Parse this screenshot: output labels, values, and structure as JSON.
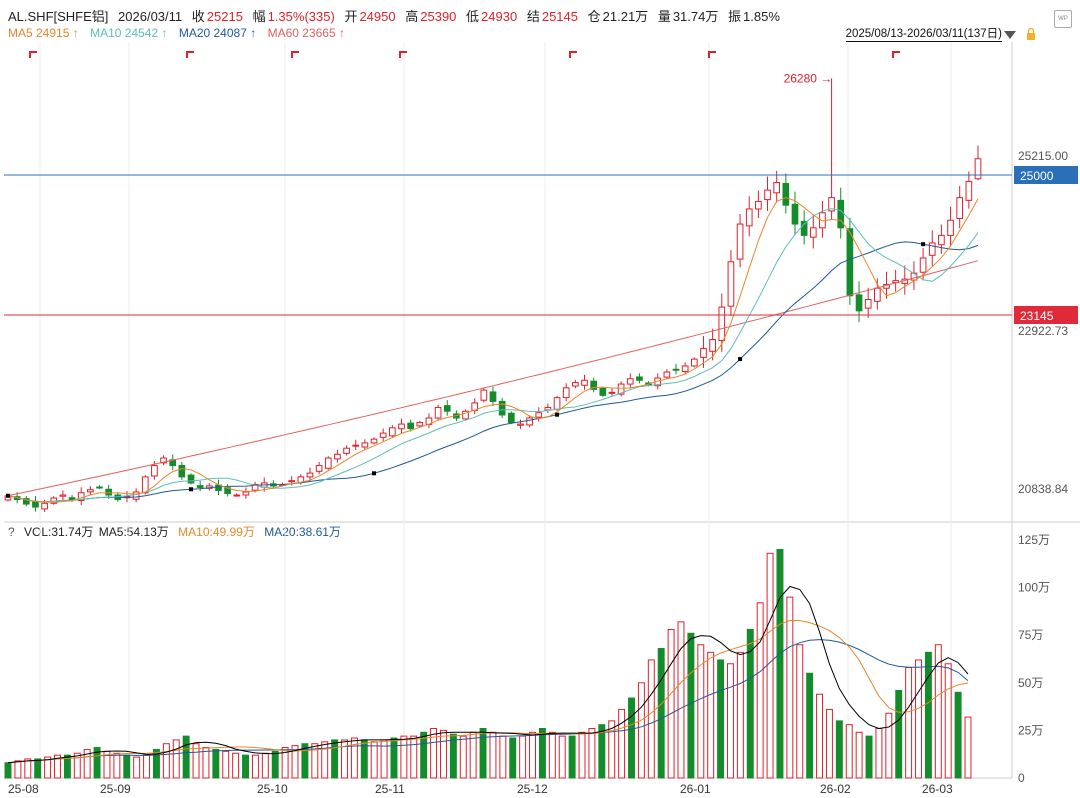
{
  "header": {
    "symbol": "AL.SHF[SHFE铝]",
    "date": "2026/03/11",
    "close_label": "收",
    "close": "25215",
    "change_label": "幅",
    "change": "1.35%(335)",
    "open_label": "开",
    "open": "24950",
    "high_label": "高",
    "high": "25390",
    "low_label": "低",
    "low": "24930",
    "settle_label": "结",
    "settle": "25145",
    "oi_label": "仓",
    "oi": "21.21万",
    "vol_label": "量",
    "vol": "31.74万",
    "amp_label": "振",
    "amp": "1.85%"
  },
  "ma_legend": {
    "ma5": "MA5 24915",
    "ma10": "MA10 24542",
    "ma20": "MA20 24087",
    "ma60": "MA60 23665",
    "arrow": "↑"
  },
  "range_text": "2025/08/13-2026/03/11(137日)",
  "watermark": "WP",
  "vol_legend": {
    "q": "?",
    "vol": "VOL:31.74万",
    "ma5": "MA5:54.13万",
    "ma10": "MA10:49.99万",
    "ma20": "MA20:38.61万"
  },
  "colors": {
    "up": "#e0202a",
    "down": "#148c2c",
    "ma5": "#000000",
    "ma10": "#e8862a",
    "ma20": "#5bbfb6",
    "ma60": "#1f5a96",
    "ma120": "#e06060",
    "hline_blue": "#2a6fb8",
    "hline_red": "#e02a3a"
  },
  "chart_data": [
    {
      "type": "candlestick",
      "title": "AL.SHF[SHFE铝]",
      "price_labels": [
        "25215.00",
        "22922.73",
        "20838.84"
      ],
      "hlines": [
        {
          "label": "25000",
          "value": 25000,
          "color": "blue"
        },
        {
          "label": "23145",
          "value": 23145,
          "color": "red"
        }
      ],
      "peak_annotation": {
        "label": "26280",
        "value": 26280
      },
      "x_ticks": [
        "25-08",
        "25-09",
        "25-10",
        "25-11",
        "25-12",
        "26-01",
        "26-02",
        "26-03"
      ],
      "ylim": [
        20700,
        26500
      ],
      "anchors_close": [
        20750,
        20700,
        20640,
        20600,
        20650,
        20720,
        20760,
        20700,
        20790,
        20830,
        20860,
        20760,
        20700,
        20740,
        20800,
        21000,
        21150,
        21250,
        21150,
        21000,
        20920,
        20860,
        20880,
        20820,
        20780,
        20760,
        20800,
        20900,
        20920,
        20880,
        20900,
        20950,
        21000,
        21050,
        21150,
        21250,
        21300,
        21380,
        21420,
        21450,
        21500,
        21580,
        21650,
        21700,
        21640,
        21720,
        21780,
        21920,
        21870,
        21780,
        21870,
        21980,
        22150,
        22000,
        21820,
        21720,
        21700,
        21780,
        21850,
        21920,
        22050,
        22180,
        22250,
        22280,
        22160,
        22080,
        22120,
        22230,
        22300,
        22280,
        22220,
        22310,
        22390,
        22420,
        22470,
        22560,
        22700,
        22820,
        23250,
        23850,
        24350,
        24550,
        24650,
        24800,
        24900,
        24600,
        24350,
        24200,
        24300,
        24500,
        24700,
        24300,
        23400,
        23200,
        23350,
        23500,
        23550,
        23600,
        23620,
        23700,
        23900,
        24100,
        24200,
        24400,
        24700,
        24915,
        25215
      ],
      "candles_end": {
        "open": 24950,
        "high": 25390,
        "low": 24930,
        "close": 25215
      },
      "ma5_last": 24915,
      "ma10_last": 24542,
      "ma20_last": 24087,
      "ma60_last": 23665
    },
    {
      "type": "bar",
      "title": "VOL",
      "y_ticks": [
        "125万",
        "100万",
        "75万",
        "50万",
        "25万",
        "0"
      ],
      "ylim": [
        0,
        125
      ],
      "unit": "万",
      "anchors_volume": [
        8,
        9,
        10,
        10,
        11,
        12,
        12,
        13,
        15,
        16,
        14,
        13,
        12,
        11,
        12,
        15,
        18,
        20,
        22,
        18,
        16,
        15,
        14,
        13,
        12,
        12,
        13,
        14,
        16,
        17,
        18,
        18,
        19,
        20,
        20,
        21,
        20,
        19,
        20,
        21,
        22,
        22,
        24,
        26,
        25,
        23,
        22,
        24,
        26,
        24,
        22,
        21,
        22,
        24,
        26,
        24,
        22,
        22,
        24,
        26,
        28,
        30,
        36,
        42,
        50,
        62,
        68,
        78,
        82,
        76,
        70,
        66,
        62,
        60,
        66,
        78,
        92,
        118,
        120,
        95,
        70,
        55,
        44,
        36,
        30,
        28,
        24,
        22,
        26,
        34,
        46,
        58,
        62,
        66,
        70,
        60,
        45,
        32
      ],
      "last_volume": 31.74,
      "ma5_last": 54.13,
      "ma10_last": 49.99,
      "ma20_last": 38.61
    }
  ]
}
